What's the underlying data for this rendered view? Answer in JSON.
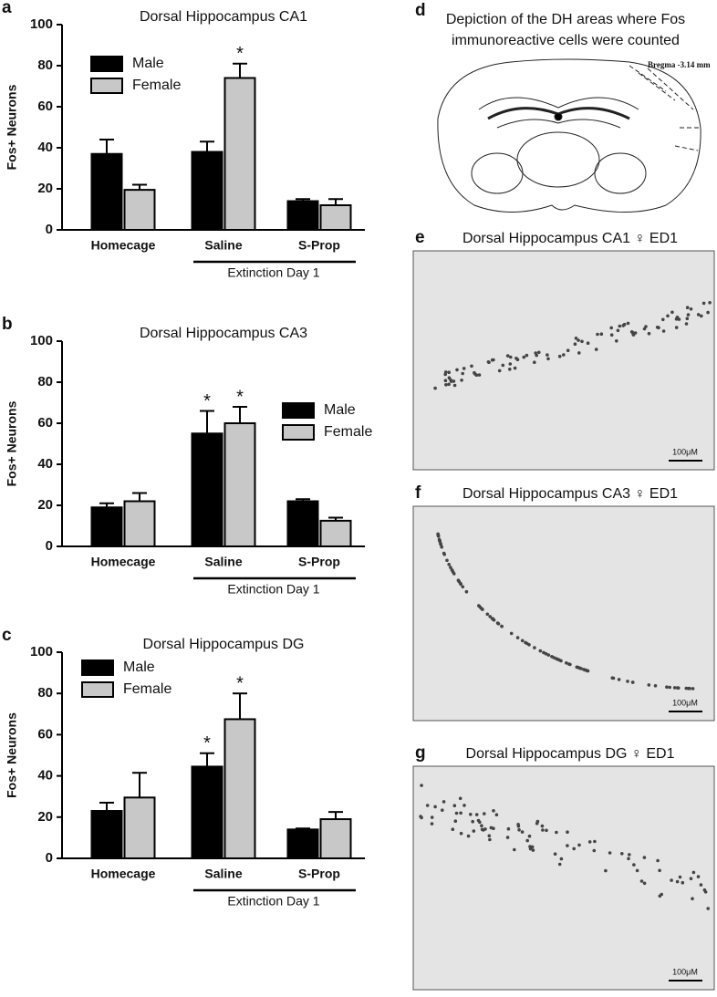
{
  "chart_data": [
    {
      "type": "bar",
      "panel_label": "a",
      "title": "Dorsal Hippocampus CA1",
      "ylabel": "Fos+ Neurons",
      "categories": [
        "Homecage",
        "Saline",
        "S-Prop"
      ],
      "ylim": [
        0,
        100
      ],
      "yticks": [
        0,
        20,
        40,
        60,
        80,
        100
      ],
      "legend": "upper left",
      "bracket_label": "Extinction  Day 1",
      "series": [
        {
          "name": "Male",
          "color": "#000000",
          "values": [
            37,
            38,
            14
          ],
          "errors": [
            7,
            5,
            1
          ],
          "marker_labels": [
            null,
            null,
            null
          ]
        },
        {
          "name": "Female",
          "color": "#c8c8c8",
          "values": [
            19.5,
            74,
            12
          ],
          "errors": [
            2.5,
            7,
            3
          ],
          "marker_labels": [
            null,
            "*",
            null
          ]
        }
      ]
    },
    {
      "type": "bar",
      "panel_label": "b",
      "title": "Dorsal Hippocampus CA3",
      "ylabel": "Fos+ Neurons",
      "categories": [
        "Homecage",
        "Saline",
        "S-Prop"
      ],
      "ylim": [
        0,
        100
      ],
      "yticks": [
        0,
        20,
        40,
        60,
        80,
        100
      ],
      "legend": "center right",
      "bracket_label": "Extinction  Day 1",
      "series": [
        {
          "name": "Male",
          "color": "#000000",
          "values": [
            19,
            55,
            22
          ],
          "errors": [
            2,
            11,
            1
          ],
          "marker_labels": [
            null,
            "*",
            null
          ]
        },
        {
          "name": "Female",
          "color": "#c8c8c8",
          "values": [
            22,
            60,
            12.5
          ],
          "errors": [
            4,
            8,
            1.5
          ],
          "marker_labels": [
            null,
            "*",
            null
          ]
        }
      ]
    },
    {
      "type": "bar",
      "panel_label": "c",
      "title": "Dorsal Hippocampus DG",
      "ylabel": "Fos+ Neurons",
      "categories": [
        "Homecage",
        "Saline",
        "S-Prop"
      ],
      "ylim": [
        0,
        100
      ],
      "yticks": [
        0,
        20,
        40,
        60,
        80,
        100
      ],
      "legend": "upper left",
      "bracket_label": "Extinction  Day 1",
      "series": [
        {
          "name": "Male",
          "color": "#000000",
          "values": [
            23,
            44.5,
            14
          ],
          "errors": [
            4,
            6.5,
            0.5
          ],
          "marker_labels": [
            null,
            "*",
            null
          ]
        },
        {
          "name": "Female",
          "color": "#c8c8c8",
          "values": [
            29.5,
            67.5,
            19
          ],
          "errors": [
            12,
            12.5,
            3.5
          ],
          "marker_labels": [
            null,
            "*",
            null
          ]
        }
      ]
    }
  ],
  "panels": [
    {
      "label": "d",
      "title_lines": [
        "Depiction of the DH areas where Fos",
        "immunoreactive cells were counted"
      ],
      "note": "Bregma -3.14 mm"
    },
    {
      "label": "e",
      "title": "Dorsal Hippocampus CA1 ♀ ED1",
      "scale": "100μM"
    },
    {
      "label": "f",
      "title": "Dorsal Hippocampus CA3 ♀ ED1",
      "scale": "100μM"
    },
    {
      "label": "g",
      "title": "Dorsal Hippocampus DG ♀ ED1",
      "scale": "100μM"
    }
  ]
}
